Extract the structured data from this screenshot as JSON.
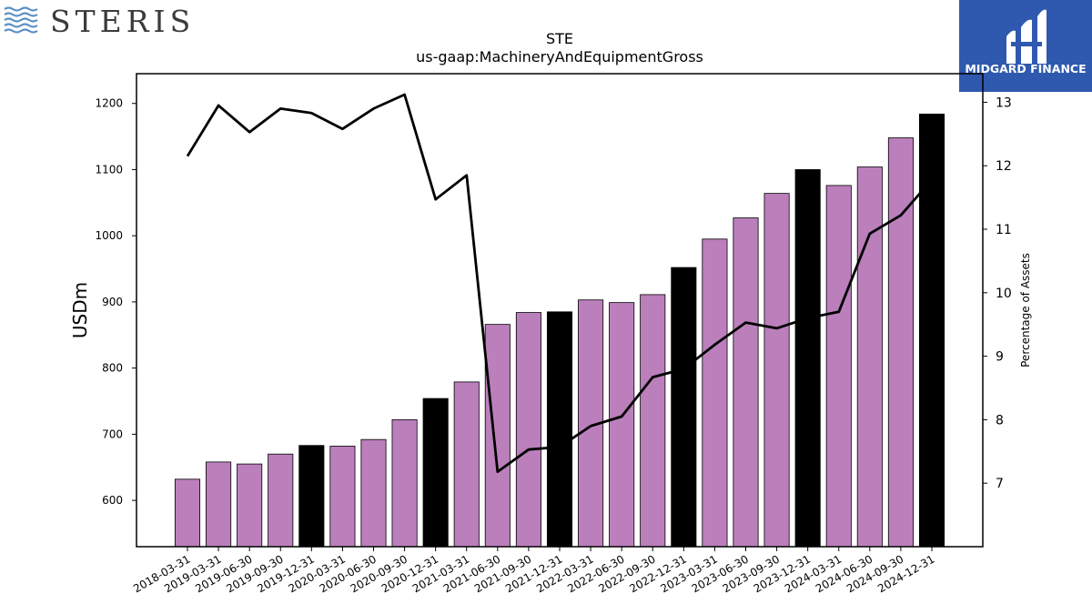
{
  "brand": {
    "left_logo_text": "STERIS",
    "right_logo_text": "MIDGARD FINANCE",
    "right_logo_color": "#2f59ae",
    "left_logo_color": "#3b3b3b",
    "wave_color": "#5b8fc6"
  },
  "chart_data": {
    "type": "bar",
    "title": "STE",
    "subtitle": "us-gaap:MachineryAndEquipmentGross",
    "ylabel": "USDm",
    "y2label": "Percentage of Assets",
    "ylim": [
      530,
      1245
    ],
    "y2lim": [
      6.0,
      13.45
    ],
    "yticks": [
      600,
      700,
      800,
      900,
      1000,
      1100,
      1200
    ],
    "y2ticks": [
      7,
      8,
      9,
      10,
      11,
      12,
      13
    ],
    "categories": [
      "2018-03-31",
      "2019-03-31",
      "2019-06-30",
      "2019-09-30",
      "2019-12-31",
      "2020-03-31",
      "2020-06-30",
      "2020-09-30",
      "2020-12-31",
      "2021-03-31",
      "2021-06-30",
      "2021-09-30",
      "2021-12-31",
      "2022-03-31",
      "2022-06-30",
      "2022-09-30",
      "2022-12-31",
      "2023-03-31",
      "2023-06-30",
      "2023-09-30",
      "2023-12-31",
      "2024-03-31",
      "2024-06-30",
      "2024-09-30",
      "2024-12-31"
    ],
    "series": [
      {
        "kind": "bar",
        "values": [
          632,
          658,
          655,
          670,
          683,
          682,
          692,
          722,
          754,
          779,
          866,
          884,
          885,
          903,
          899,
          911,
          952,
          995,
          1027,
          1064,
          1100,
          1076,
          1104,
          1148,
          1184
        ],
        "highlight": [
          false,
          false,
          false,
          false,
          true,
          false,
          false,
          false,
          true,
          false,
          false,
          false,
          true,
          false,
          false,
          false,
          true,
          false,
          false,
          false,
          true,
          false,
          false,
          false,
          true
        ]
      },
      {
        "kind": "line",
        "axis": "right",
        "values": [
          12.15,
          12.95,
          12.53,
          12.9,
          12.83,
          12.58,
          12.9,
          13.12,
          11.47,
          11.85,
          7.18,
          7.53,
          7.57,
          7.9,
          8.05,
          8.67,
          8.8,
          9.18,
          9.53,
          9.44,
          9.6,
          9.7,
          10.93,
          11.22,
          11.78
        ]
      }
    ],
    "colors": {
      "bar": "#bb7fbc",
      "bar_highlight": "#000000",
      "line": "#000000",
      "axis": "#000000"
    }
  }
}
